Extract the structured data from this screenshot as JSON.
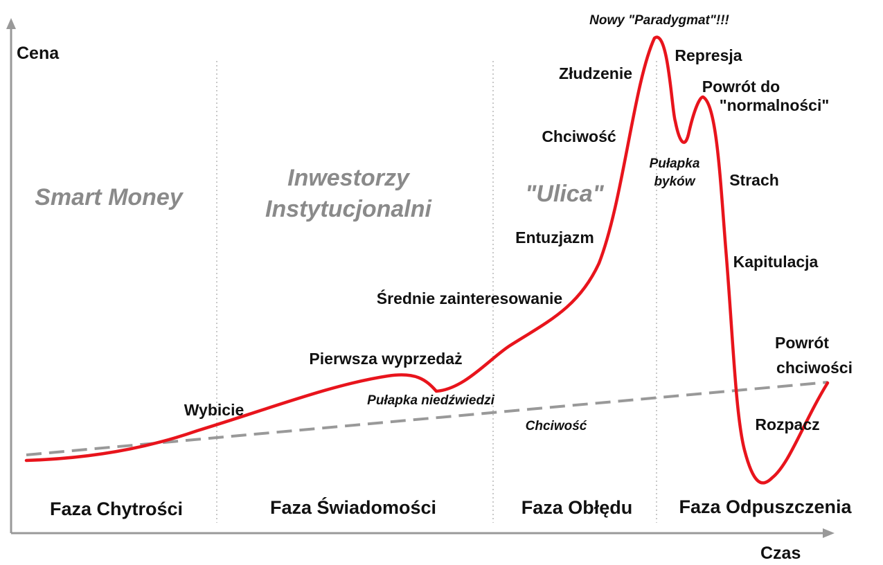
{
  "axes": {
    "y_label": "Cena",
    "x_label": "Czas"
  },
  "audiences": {
    "smart_money": "Smart Money",
    "institutional_line1": "Inwestorzy",
    "institutional_line2": "Instytucjonalni",
    "street": "\"Ulica\""
  },
  "phases": {
    "stealth": "Faza Chytrości",
    "awareness": "Faza Świadomości",
    "mania": "Faza Obłędu",
    "blow_off": "Faza Odpuszczenia"
  },
  "events": {
    "new_paradigm": "Nowy \"Paradygmat\"!!!",
    "denial": "Represja",
    "return_line1": "Powrót do",
    "return_line2": "\"normalności\"",
    "delusion": "Złudzenie",
    "greed": "Chciwość",
    "bull_trap_line1": "Pułapka",
    "bull_trap_line2": "byków",
    "fear": "Strach",
    "enthusiasm": "Entuzjazm",
    "capitulation": "Kapitulacja",
    "media_attention": "Średnie zainteresowanie",
    "first_sell_off": "Pierwsza wyprzedaż",
    "bear_trap": "Pułapka niedźwiedzi",
    "take_off": "Wybicie",
    "greed_lower": "Chciwość",
    "return_greed_line1": "Powrót",
    "return_greed_line2": "chciwości",
    "despair": "Rozpacz"
  },
  "colors": {
    "curve": "#e8141c",
    "trend": "#999999",
    "divider": "#c8c8c8",
    "axis": "#999999",
    "text": "#111111",
    "audience_text": "#8a8a8a"
  }
}
